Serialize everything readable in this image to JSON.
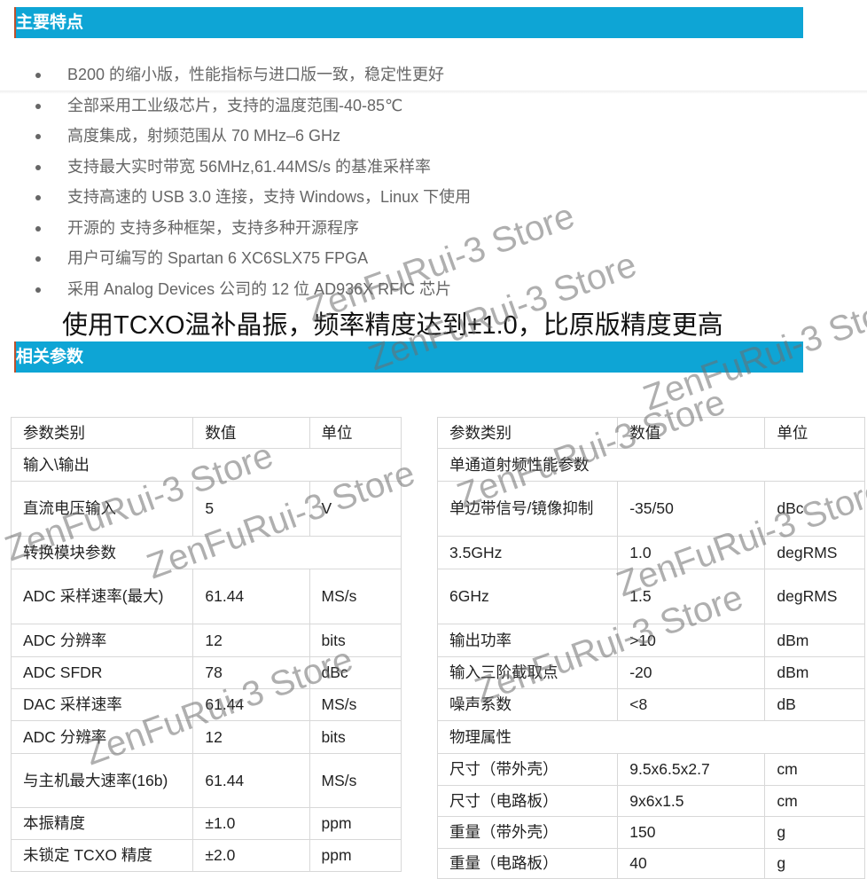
{
  "section1": {
    "title": "主要特点"
  },
  "features": [
    "B200 的缩小版，性能指标与进口版一致，稳定性更好",
    "全部采用工业级芯片，支持的温度范围-40-85℃",
    "高度集成，射频范围从 70 MHz–6 GHz",
    "支持最大实时带宽 56MHz,61.44MS/s 的基准采样率",
    "支持高速的 USB 3.0 连接，支持 Windows，Linux 下使用",
    "开源的 支持多种框架，支持多种开源程序",
    "用户可编写的 Spartan 6 XC6SLX75 FPGA",
    "采用 Analog Devices 公司的 12 位 AD936X RFIC 芯片"
  ],
  "highlight": "使用TCXO温补晶振，频率精度达到±1.0，比原版精度更高",
  "section2": {
    "title": "相关参数"
  },
  "left_table": [
    [
      "参数类别",
      "数值",
      "单位"
    ],
    [
      "输入\\输出"
    ],
    [
      "直流电压输入",
      "5",
      "V"
    ],
    [
      "转换模块参数"
    ],
    [
      "ADC 采样速率(最大)",
      "61.44",
      "MS/s"
    ],
    [
      "ADC 分辨率",
      "12",
      "bits"
    ],
    [
      "ADC SFDR",
      "78",
      "dBc"
    ],
    [
      "DAC 采样速率",
      "61.44",
      "MS/s"
    ],
    [
      "ADC 分辨率",
      "12",
      "bits"
    ],
    [
      "与主机最大速率(16b)",
      "61.44",
      "MS/s"
    ],
    [
      "本振精度",
      "±1.0",
      "ppm"
    ],
    [
      "未锁定 TCXO 精度",
      "±2.0",
      "ppm"
    ]
  ],
  "right_table": [
    [
      "参数类别",
      "数值",
      "单位"
    ],
    [
      "单通道射频性能参数"
    ],
    [
      "单边带信号/镜像抑制",
      "-35/50",
      "dBc"
    ],
    [
      "3.5GHz",
      "1.0",
      "degRMS"
    ],
    [
      "6GHz",
      "1.5",
      "degRMS"
    ],
    [
      "输出功率",
      ">10",
      "dBm"
    ],
    [
      "输入三阶截取点",
      "-20",
      "dBm"
    ],
    [
      "噪声系数",
      "<8",
      "dB"
    ],
    [
      "物理属性"
    ],
    [
      "尺寸（带外壳）",
      "9.5x6.5x2.7",
      "cm"
    ],
    [
      "尺寸（电路板）",
      "9x6x1.5",
      "cm"
    ],
    [
      "重量（带外壳）",
      "150",
      "g"
    ],
    [
      "重量（电路板）",
      "40",
      "g"
    ]
  ],
  "watermark": "ZenFuRui-3 Store",
  "colors": {
    "header_bar": "#0ea5d5"
  }
}
